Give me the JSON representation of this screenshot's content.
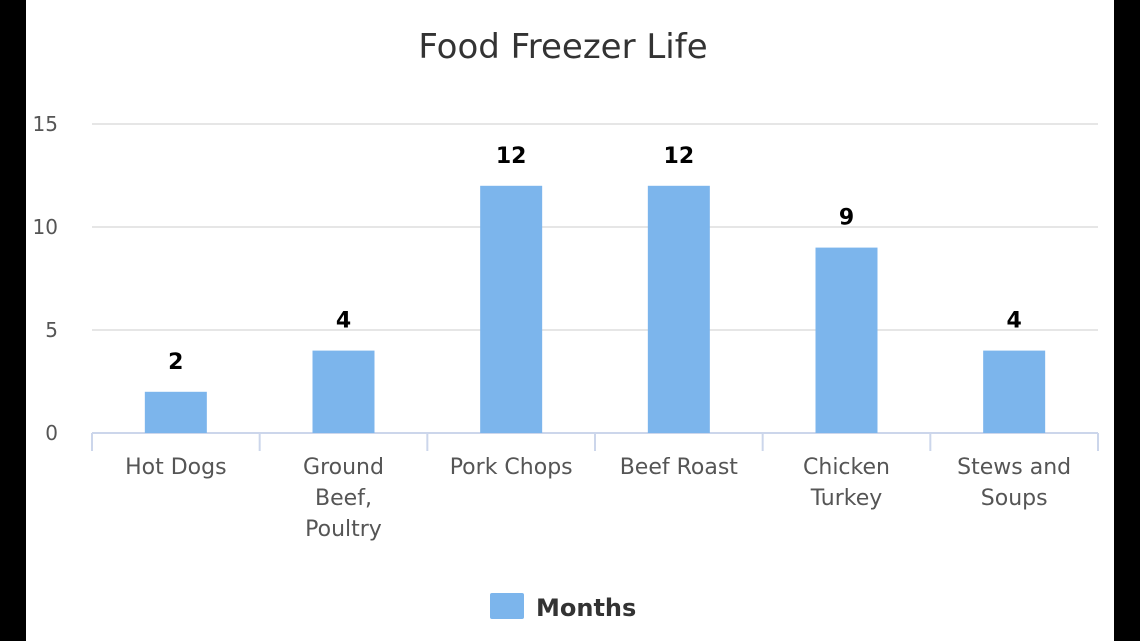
{
  "chart_data": {
    "type": "bar",
    "title": "Food Freezer Life",
    "categories": [
      [
        "Hot Dogs"
      ],
      [
        "Ground",
        "Beef,",
        "Poultry"
      ],
      [
        "Pork Chops"
      ],
      [
        "Beef Roast"
      ],
      [
        "Chicken",
        "Turkey"
      ],
      [
        "Stews and",
        "Soups"
      ]
    ],
    "series": [
      {
        "name": "Months",
        "values": [
          2,
          4,
          12,
          12,
          9,
          4
        ],
        "color": "#7cb5ec"
      }
    ],
    "ylim": [
      0,
      15
    ],
    "yticks": [
      0,
      5,
      10,
      15
    ],
    "data_labels": true,
    "grid": true,
    "legend": "bottom-center"
  }
}
